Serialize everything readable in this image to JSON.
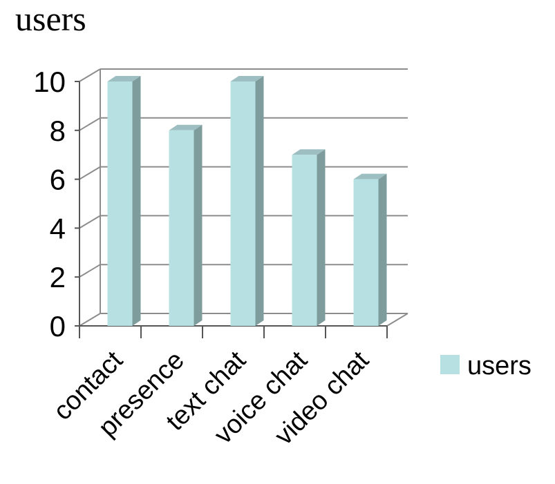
{
  "chart_data": {
    "type": "bar",
    "title": "users",
    "categories": [
      "contact",
      "presence",
      "text chat",
      "voice chat",
      "video chat"
    ],
    "series": [
      {
        "name": "users",
        "values": [
          10,
          8,
          10,
          7,
          6
        ]
      }
    ],
    "ylim": [
      0,
      10
    ],
    "yticks": [
      "0",
      "2",
      "4",
      "6",
      "8",
      "10"
    ],
    "grid": true,
    "legend": "right",
    "style": "3d-column",
    "colors": {
      "bar_front": "#b7e0e3",
      "bar_side": "#7f9c9d",
      "bar_top": "#9dbfc1",
      "grid": "#8c8c8c"
    }
  }
}
